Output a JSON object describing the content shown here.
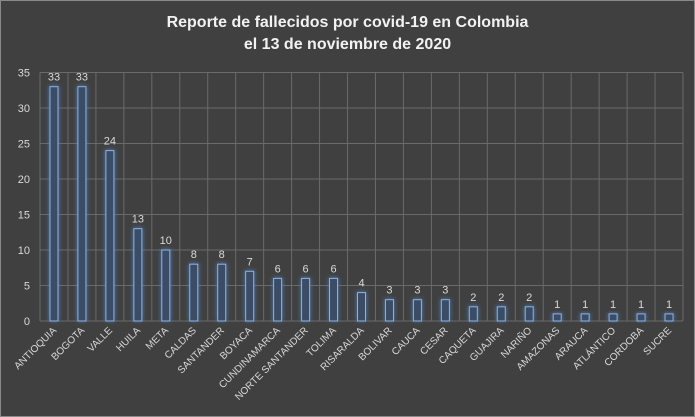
{
  "chart_data": {
    "type": "bar",
    "title_line1": "Reporte de fallecidos por covid-19 en Colombia",
    "title_line2": "el 13 de noviembre de 2020",
    "xlabel": "",
    "ylabel": "",
    "ylim": [
      0,
      35
    ],
    "yticks": [
      0,
      5,
      10,
      15,
      20,
      25,
      30,
      35
    ],
    "grid": true,
    "legend": "none",
    "categories": [
      "ANTIOQUIA",
      "BOGOTA",
      "VALLE",
      "HUILA",
      "META",
      "CALDAS",
      "SANTANDER",
      "BOYACA",
      "CUNDINAMARCA",
      "NORTE SANTANDER",
      "TOLIMA",
      "RISARALDA",
      "BOLIVAR",
      "CAUCA",
      "CESAR",
      "CAQUETA",
      "GUAJIRA",
      "NARIÑO",
      "AMAZONAS",
      "ARAUCA",
      "ATLÁNTICO",
      "CORDOBA",
      "SUCRE"
    ],
    "values": [
      33,
      33,
      24,
      13,
      10,
      8,
      8,
      7,
      6,
      6,
      6,
      4,
      3,
      3,
      3,
      2,
      2,
      2,
      1,
      1,
      1,
      1,
      1
    ],
    "bar_color": "#4f81bd",
    "background": "#404040"
  }
}
